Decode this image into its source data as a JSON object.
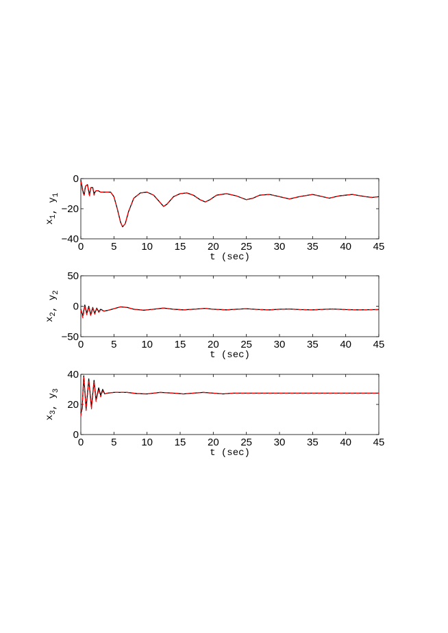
{
  "chart_data": [
    {
      "type": "line",
      "xlabel": "t (sec)",
      "ylabel": {
        "parts": [
          [
            "x",
            "1"
          ],
          [
            "y",
            "1"
          ]
        ]
      },
      "xlim": [
        0,
        45
      ],
      "ylim": [
        -40,
        0
      ],
      "xticks": [
        0,
        5,
        10,
        15,
        20,
        25,
        30,
        35,
        40,
        45
      ],
      "yticks": [
        -40,
        -20,
        0
      ],
      "grid": false,
      "series": [
        {
          "color": "#000000",
          "style": "solid",
          "x": [
            0,
            0.3,
            0.5,
            0.7,
            1.0,
            1.3,
            1.5,
            1.8,
            2.0,
            2.3,
            2.6,
            3,
            4,
            4.5,
            5,
            5.5,
            6.0,
            6.3,
            6.7,
            7.2,
            8,
            9,
            10,
            11,
            12,
            12.5,
            13,
            14,
            15,
            16,
            17,
            18,
            18.8,
            19.5,
            20.5,
            22,
            23.5,
            25,
            26,
            27,
            28.5,
            30,
            31.5,
            33,
            35,
            36.5,
            37.5,
            39,
            41,
            43,
            44,
            45
          ],
          "y": [
            -1,
            -8,
            -11,
            -5,
            -4,
            -11,
            -6,
            -6,
            -10,
            -8,
            -8,
            -9,
            -9,
            -9,
            -12,
            -20,
            -29,
            -32,
            -30,
            -22,
            -13,
            -9.5,
            -9,
            -11,
            -16,
            -18.5,
            -17,
            -12,
            -10,
            -9.5,
            -11,
            -14,
            -15.5,
            -14,
            -11,
            -10,
            -11.5,
            -14,
            -13,
            -11,
            -10.5,
            -12,
            -13.5,
            -12,
            -10.5,
            -12,
            -13,
            -11.5,
            -10.5,
            -12,
            -12.5,
            -12
          ]
        },
        {
          "color": "#ff0000",
          "style": "dashed",
          "x": [
            0,
            0.3,
            0.5,
            0.7,
            1.0,
            1.3,
            1.5,
            1.8,
            2.0,
            2.3,
            2.6,
            3,
            4,
            4.5,
            5,
            5.5,
            6.0,
            6.3,
            6.7,
            7.2,
            8,
            9,
            10,
            11,
            12,
            12.5,
            13,
            14,
            15,
            16,
            17,
            18,
            18.8,
            19.5,
            20.5,
            22,
            23.5,
            25,
            26,
            27,
            28.5,
            30,
            31.5,
            33,
            35,
            36.5,
            37.5,
            39,
            41,
            43,
            44,
            45
          ],
          "y": [
            -2,
            -9,
            -11,
            -5,
            -4,
            -12,
            -6,
            -6,
            -11,
            -8,
            -8,
            -9,
            -9,
            -9,
            -12,
            -20,
            -29,
            -32,
            -30,
            -22,
            -13,
            -9.5,
            -9,
            -11,
            -16,
            -18.5,
            -17,
            -12,
            -10,
            -9.5,
            -11,
            -14,
            -15.5,
            -14,
            -11,
            -10,
            -11.5,
            -14,
            -13,
            -11,
            -10.5,
            -12,
            -13.5,
            -12,
            -10.5,
            -12,
            -13,
            -11.5,
            -10.5,
            -12,
            -12.5,
            -12
          ]
        }
      ]
    },
    {
      "type": "line",
      "xlabel": "t (sec)",
      "ylabel": {
        "parts": [
          [
            "x",
            "2"
          ],
          [
            "y",
            "2"
          ]
        ]
      },
      "xlim": [
        0,
        45
      ],
      "ylim": [
        -50,
        50
      ],
      "xticks": [
        0,
        5,
        10,
        15,
        20,
        25,
        30,
        35,
        40,
        45
      ],
      "yticks": [
        -50,
        0,
        50
      ],
      "grid": false,
      "series": [
        {
          "color": "#000000",
          "style": "solid",
          "x": [
            0,
            0.3,
            0.6,
            0.9,
            1.2,
            1.5,
            1.8,
            2.1,
            2.4,
            2.7,
            3,
            3.5,
            4,
            5,
            6,
            7,
            8,
            9.5,
            11,
            12.5,
            14,
            15.5,
            17,
            18.8,
            20,
            22,
            23.5,
            25,
            27,
            28.5,
            30,
            31.5,
            33,
            35,
            37,
            38,
            40,
            42,
            45
          ],
          "y": [
            -5,
            -16,
            2,
            -12,
            0,
            -14,
            -2,
            -12,
            -3,
            -9,
            -5,
            -8,
            -7,
            -4,
            -1,
            -2,
            -5,
            -6.5,
            -5,
            -3,
            -5,
            -6,
            -5,
            -3.5,
            -5,
            -6,
            -5,
            -4,
            -5.5,
            -6,
            -5,
            -4.5,
            -5.5,
            -6,
            -5,
            -4.5,
            -5.5,
            -6,
            -5.5
          ]
        },
        {
          "color": "#ff0000",
          "style": "dashed",
          "x": [
            0,
            0.3,
            0.6,
            0.9,
            1.2,
            1.5,
            1.8,
            2.1,
            2.4,
            2.7,
            3,
            3.5,
            4,
            5,
            6,
            7,
            8,
            9.5,
            11,
            12.5,
            14,
            15.5,
            17,
            18.8,
            20,
            22,
            23.5,
            25,
            27,
            28.5,
            30,
            31.5,
            33,
            35,
            37,
            38,
            40,
            42,
            45
          ],
          "y": [
            -6,
            -19,
            1,
            -14,
            -1,
            -16,
            -3,
            -13,
            -4,
            -10,
            -6,
            -8,
            -7,
            -4,
            -1,
            -2,
            -5,
            -6.5,
            -5,
            -3,
            -5,
            -6,
            -5,
            -3.5,
            -5,
            -6,
            -5,
            -4,
            -5.5,
            -6,
            -5,
            -4.5,
            -5.5,
            -6,
            -5,
            -4.5,
            -5.5,
            -6,
            -5.5
          ]
        }
      ]
    },
    {
      "type": "line",
      "xlabel": "t (sec)",
      "ylabel": {
        "parts": [
          [
            "x",
            "3"
          ],
          [
            "y",
            "3"
          ]
        ]
      },
      "xlim": [
        0,
        45
      ],
      "ylim": [
        0,
        40
      ],
      "xticks": [
        0,
        5,
        10,
        15,
        20,
        25,
        30,
        35,
        40,
        45
      ],
      "yticks": [
        0,
        20,
        40
      ],
      "grid": false,
      "series": [
        {
          "color": "#000000",
          "style": "solid",
          "x": [
            0,
            0.2,
            0.45,
            0.8,
            1.2,
            1.6,
            2.0,
            2.3,
            2.7,
            3.0,
            3.3,
            3.6,
            4,
            5,
            7,
            8.5,
            10,
            12,
            14,
            15.5,
            18.5,
            20,
            21.5,
            23,
            45
          ],
          "y": [
            14,
            17,
            39,
            17,
            37,
            18,
            36,
            23,
            31,
            26,
            30,
            27,
            27.5,
            28,
            28,
            27.2,
            27,
            28,
            27.5,
            27,
            28,
            27.5,
            27,
            27.5,
            27.5
          ]
        },
        {
          "color": "#ff0000",
          "style": "dashed",
          "x": [
            0,
            0.2,
            0.45,
            0.8,
            1.2,
            1.6,
            2.0,
            2.3,
            2.7,
            3.0,
            3.3,
            3.6,
            4,
            5,
            7,
            8.5,
            10,
            12,
            14,
            15.5,
            18.5,
            20,
            21.5,
            23,
            45
          ],
          "y": [
            12,
            19,
            38,
            16,
            36,
            17,
            35,
            22,
            30,
            25,
            29,
            27,
            27.5,
            28,
            28,
            27.2,
            27,
            28,
            27.5,
            27,
            28,
            27.5,
            27,
            27.5,
            27.5
          ]
        }
      ]
    }
  ]
}
